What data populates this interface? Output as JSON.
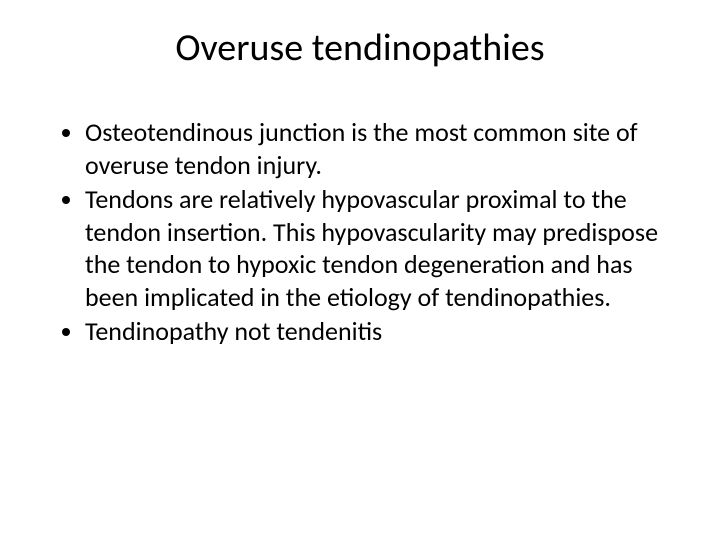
{
  "slide": {
    "title": "Overuse tendinopathies",
    "title_fontsize": 38,
    "title_color": "#000000",
    "bullets": [
      "Osteotendinous junction is the most common site of overuse tendon injury.",
      "Tendons are relatively hypovascular proximal to the tendon insertion. This hypovascularity may predispose the tendon to hypoxic tendon degeneration and has been implicated in the etiology of tendinopathies.",
      "Tendinopathy not tendenitis"
    ],
    "bullet_fontsize": 26,
    "bullet_color": "#000000",
    "background_color": "#ffffff"
  }
}
